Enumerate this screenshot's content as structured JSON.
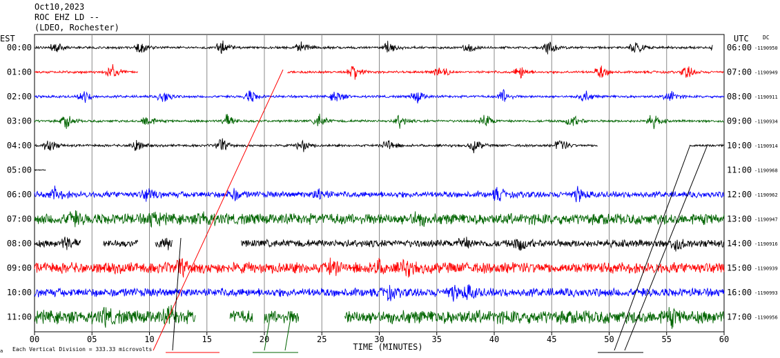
{
  "header": {
    "date": "Oct10,2023",
    "station": "ROC EHZ LD --",
    "network": "(LDEO, Rochester)"
  },
  "chart_data": {
    "type": "line",
    "title": "ROC EHZ LD --",
    "left_axis_title": "EST",
    "right_axis_title": "UTC",
    "right_corner_label": "DC",
    "xlabel": "TIME (MINUTES)",
    "x_ticks": [
      "00",
      "05",
      "10",
      "15",
      "20",
      "25",
      "30",
      "35",
      "40",
      "45",
      "50",
      "55",
      "60"
    ],
    "xlim": [
      0,
      60
    ],
    "grid_x_minutes": [
      5,
      10,
      15,
      20,
      25,
      30,
      35,
      40,
      45,
      50,
      55
    ],
    "footer_note": "Each Vertical Division = 333.33 microvolts",
    "footer_mark": "a",
    "trace_colors": [
      "#000000",
      "#ff0000",
      "#0000ff",
      "#006400"
    ],
    "traces": [
      {
        "est": "00:00",
        "utc": "06:00",
        "dc": "-1190950",
        "color": "#000000",
        "amp": 2,
        "data_segments": [
          [
            0,
            59
          ]
        ],
        "events": [
          1.5,
          9,
          16,
          23,
          30.5,
          37.5,
          44.5,
          52,
          59
        ]
      },
      {
        "est": "01:00",
        "utc": "07:00",
        "dc": "-1190949",
        "color": "#ff0000",
        "amp": 2,
        "data_segments": [
          [
            0,
            9
          ],
          [
            22,
            60
          ]
        ],
        "events": [
          6.5,
          27.5,
          35,
          42,
          49,
          56.5
        ]
      },
      {
        "est": "02:00",
        "utc": "08:00",
        "dc": "-1190911",
        "color": "#0000ff",
        "amp": 2,
        "data_segments": [
          [
            0,
            60
          ]
        ],
        "events": [
          4,
          11,
          18.5,
          26,
          33,
          40.5,
          47.5,
          55
        ]
      },
      {
        "est": "03:00",
        "utc": "09:00",
        "dc": "-1190934",
        "color": "#006400",
        "amp": 2,
        "data_segments": [
          [
            0,
            60
          ]
        ],
        "events": [
          2.5,
          9.5,
          16.5,
          24.5,
          31.5,
          39,
          46.5,
          53.5
        ]
      },
      {
        "est": "04:00",
        "utc": "10:00",
        "dc": "-1190914",
        "color": "#000000",
        "amp": 2,
        "data_segments": [
          [
            0,
            49
          ],
          [
            57,
            60
          ]
        ],
        "events": [
          1,
          8.5,
          16,
          23,
          30.5,
          38,
          45.5
        ]
      },
      {
        "est": "05:00",
        "utc": "11:00",
        "dc": "-1190968",
        "color": "#000000",
        "amp": 1,
        "data_segments": [
          [
            0,
            1
          ]
        ],
        "events": []
      },
      {
        "est": "06:00",
        "utc": "12:00",
        "dc": "-1190962",
        "color": "#0000ff",
        "amp": 5,
        "data_segments": [
          [
            0,
            60
          ]
        ],
        "events": [
          1.5,
          9.5,
          17,
          24.5,
          40,
          47
        ]
      },
      {
        "est": "07:00",
        "utc": "13:00",
        "dc": "-1190947",
        "color": "#006400",
        "amp": 9,
        "data_segments": [
          [
            0,
            60
          ]
        ],
        "events": [
          3,
          10,
          14.5,
          33
        ]
      },
      {
        "est": "08:00",
        "utc": "14:00",
        "dc": "-1190916",
        "color": "#000000",
        "amp": 6,
        "data_segments": [
          [
            0,
            4
          ],
          [
            6,
            9
          ],
          [
            10.5,
            12
          ],
          [
            18,
            60
          ]
        ],
        "events": [
          2.5,
          11,
          37,
          42,
          55.5
        ]
      },
      {
        "est": "09:00",
        "utc": "15:00",
        "dc": "-1190939",
        "color": "#ff0000",
        "amp": 9,
        "data_segments": [
          [
            0,
            60
          ]
        ],
        "events": [
          12.5,
          25.5,
          29.5,
          32
        ]
      },
      {
        "est": "10:00",
        "utc": "16:00",
        "dc": "-1190993",
        "color": "#0000ff",
        "amp": 7,
        "data_segments": [
          [
            0,
            60
          ]
        ],
        "events": [
          36,
          37.5,
          30.5
        ]
      },
      {
        "est": "11:00",
        "utc": "17:00",
        "dc": "-1190956",
        "color": "#006400",
        "amp": 11,
        "data_segments": [
          [
            0,
            14
          ],
          [
            17,
            19
          ],
          [
            20,
            23
          ],
          [
            27,
            60
          ]
        ],
        "events": [
          6,
          11.5,
          55
        ]
      }
    ]
  }
}
